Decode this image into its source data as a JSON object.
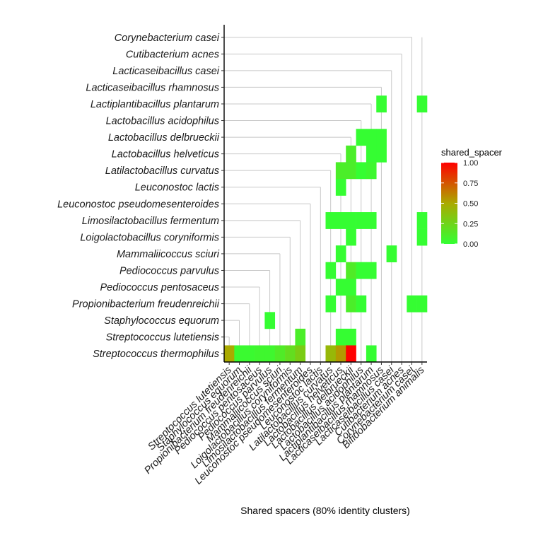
{
  "chart_data": {
    "type": "heatmap",
    "title": "",
    "xlabel": "Shared spacers (80% identity clusters)",
    "ylabel": "",
    "y_categories": [
      "Corynebacterium casei",
      "Cutibacterium acnes",
      "Lacticaseibacillus casei",
      "Lacticaseibacillus rhamnosus",
      "Lactiplantibacillus plantarum",
      "Lactobacillus acidophilus",
      "Lactobacillus delbrueckii",
      "Lactobacillus helveticus",
      "Latilactobacillus curvatus",
      "Leuconostoc lactis",
      "Leuconostoc pseudomesenteroides",
      "Limosilactobacillus fermentum",
      "Loigolactobacillus coryniformis",
      "Mammaliicoccus sciuri",
      "Pediococcus parvulus",
      "Pediococcus pentosaceus",
      "Propionibacterium freudenreichii",
      "Staphylococcus equorum",
      "Streptococcus lutetiensis",
      "Streptococcus thermophilus"
    ],
    "x_categories": [
      "Streptococcus lutetiensis",
      "Staphylococcus equorum",
      "Propionibacterium freudenreichii",
      "Pediococcus pentosaceus",
      "Pediococcus parvulus",
      "Mammaliicoccus sciuri",
      "Loigolactobacillus coryniformis",
      "Limosilactobacillus fermentum",
      "Leuconostoc pseudomesenteroides",
      "Leuconostoc lactis",
      "Latilactobacillus curvatus",
      "Lactobacillus helveticus",
      "Lactobacillus delbrueckii",
      "Lactobacillus acidophilus",
      "Lactiplantibacillus plantarum",
      "Lacticaseibacillus rhamnosus",
      "Lacticaseibacillus casei",
      "Cutibacterium acnes",
      "Corynebacterium casei",
      "Bifidobacterium animalis"
    ],
    "cells": [
      {
        "x": "Lacticaseibacillus rhamnosus",
        "y": "Lactiplantibacillus plantarum",
        "value": 0.01
      },
      {
        "x": "Bifidobacterium animalis",
        "y": "Lactiplantibacillus plantarum",
        "value": 0.01
      },
      {
        "x": "Lactobacillus acidophilus",
        "y": "Lactobacillus delbrueckii",
        "value": 0.01
      },
      {
        "x": "Lactiplantibacillus plantarum",
        "y": "Lactobacillus delbrueckii",
        "value": 0.01
      },
      {
        "x": "Lacticaseibacillus rhamnosus",
        "y": "Lactobacillus delbrueckii",
        "value": 0.01
      },
      {
        "x": "Lactobacillus delbrueckii",
        "y": "Lactobacillus helveticus",
        "value": 0.1
      },
      {
        "x": "Lactiplantibacillus plantarum",
        "y": "Lactobacillus helveticus",
        "value": 0.01
      },
      {
        "x": "Lacticaseibacillus rhamnosus",
        "y": "Lactobacillus helveticus",
        "value": 0.01
      },
      {
        "x": "Lactobacillus helveticus",
        "y": "Latilactobacillus curvatus",
        "value": 0.1
      },
      {
        "x": "Lactobacillus delbrueckii",
        "y": "Latilactobacillus curvatus",
        "value": 0.1
      },
      {
        "x": "Lactobacillus acidophilus",
        "y": "Latilactobacillus curvatus",
        "value": 0.01
      },
      {
        "x": "Lactiplantibacillus plantarum",
        "y": "Latilactobacillus curvatus",
        "value": 0.04
      },
      {
        "x": "Lactobacillus helveticus",
        "y": "Leuconostoc lactis",
        "value": 0.01
      },
      {
        "x": "Latilactobacillus curvatus",
        "y": "Limosilactobacillus fermentum",
        "value": 0.01
      },
      {
        "x": "Lactobacillus helveticus",
        "y": "Limosilactobacillus fermentum",
        "value": 0.01
      },
      {
        "x": "Lactobacillus delbrueckii",
        "y": "Limosilactobacillus fermentum",
        "value": 0.01
      },
      {
        "x": "Lactobacillus acidophilus",
        "y": "Limosilactobacillus fermentum",
        "value": 0.01
      },
      {
        "x": "Lactiplantibacillus plantarum",
        "y": "Limosilactobacillus fermentum",
        "value": 0.01
      },
      {
        "x": "Bifidobacterium animalis",
        "y": "Limosilactobacillus fermentum",
        "value": 0.01
      },
      {
        "x": "Lactobacillus delbrueckii",
        "y": "Loigolactobacillus coryniformis",
        "value": 0.01
      },
      {
        "x": "Bifidobacterium animalis",
        "y": "Loigolactobacillus coryniformis",
        "value": 0.01
      },
      {
        "x": "Lactobacillus helveticus",
        "y": "Mammaliicoccus sciuri",
        "value": 0.01
      },
      {
        "x": "Lacticaseibacillus casei",
        "y": "Mammaliicoccus sciuri",
        "value": 0.01
      },
      {
        "x": "Latilactobacillus curvatus",
        "y": "Pediococcus parvulus",
        "value": 0.01
      },
      {
        "x": "Lactobacillus delbrueckii",
        "y": "Pediococcus parvulus",
        "value": 0.12
      },
      {
        "x": "Lactobacillus acidophilus",
        "y": "Pediococcus parvulus",
        "value": 0.01
      },
      {
        "x": "Lactiplantibacillus plantarum",
        "y": "Pediococcus parvulus",
        "value": 0.01
      },
      {
        "x": "Lactobacillus helveticus",
        "y": "Pediococcus pentosaceus",
        "value": 0.01
      },
      {
        "x": "Lactobacillus delbrueckii",
        "y": "Pediococcus pentosaceus",
        "value": 0.01
      },
      {
        "x": "Latilactobacillus curvatus",
        "y": "Propionibacterium freudenreichii",
        "value": 0.01
      },
      {
        "x": "Lactobacillus delbrueckii",
        "y": "Propionibacterium freudenreichii",
        "value": 0.1
      },
      {
        "x": "Lactobacillus acidophilus",
        "y": "Propionibacterium freudenreichii",
        "value": 0.01
      },
      {
        "x": "Corynebacterium casei",
        "y": "Propionibacterium freudenreichii",
        "value": 0.01
      },
      {
        "x": "Bifidobacterium animalis",
        "y": "Propionibacterium freudenreichii",
        "value": 0.01
      },
      {
        "x": "Pediococcus parvulus",
        "y": "Staphylococcus equorum",
        "value": 0.01
      },
      {
        "x": "Limosilactobacillus fermentum",
        "y": "Streptococcus lutetiensis",
        "value": 0.1
      },
      {
        "x": "Lactobacillus helveticus",
        "y": "Streptococcus lutetiensis",
        "value": 0.01
      },
      {
        "x": "Lactobacillus delbrueckii",
        "y": "Streptococcus lutetiensis",
        "value": 0.01
      },
      {
        "x": "Streptococcus lutetiensis",
        "y": "Streptococcus thermophilus",
        "value": 0.5
      },
      {
        "x": "Staphylococcus equorum",
        "y": "Streptococcus thermophilus",
        "value": 0.03
      },
      {
        "x": "Propionibacterium freudenreichii",
        "y": "Streptococcus thermophilus",
        "value": 0.03
      },
      {
        "x": "Pediococcus pentosaceus",
        "y": "Streptococcus thermophilus",
        "value": 0.05
      },
      {
        "x": "Pediococcus parvulus",
        "y": "Streptococcus thermophilus",
        "value": 0.05
      },
      {
        "x": "Mammaliicoccus sciuri",
        "y": "Streptococcus thermophilus",
        "value": 0.12
      },
      {
        "x": "Loigolactobacillus coryniformis",
        "y": "Streptococcus thermophilus",
        "value": 0.2
      },
      {
        "x": "Limosilactobacillus fermentum",
        "y": "Streptococcus thermophilus",
        "value": 0.3
      },
      {
        "x": "Latilactobacillus curvatus",
        "y": "Streptococcus thermophilus",
        "value": 0.42
      },
      {
        "x": "Lactobacillus helveticus",
        "y": "Streptococcus thermophilus",
        "value": 0.55
      },
      {
        "x": "Lactobacillus delbrueckii",
        "y": "Streptococcus thermophilus",
        "value": 1.0
      },
      {
        "x": "Lactiplantibacillus plantarum",
        "y": "Streptococcus thermophilus",
        "value": 0.01
      }
    ],
    "legend": {
      "title": "shared_spacer",
      "ticks": [
        "1.00",
        "0.75",
        "0.50",
        "0.25",
        "0.00"
      ],
      "range": [
        0,
        1
      ],
      "placement": "right"
    },
    "color_scale": {
      "low": "#33ff33",
      "mid": "#aaaa00",
      "high": "#ff0000"
    },
    "grid": "lower-left triangle with light grey gridlines"
  }
}
